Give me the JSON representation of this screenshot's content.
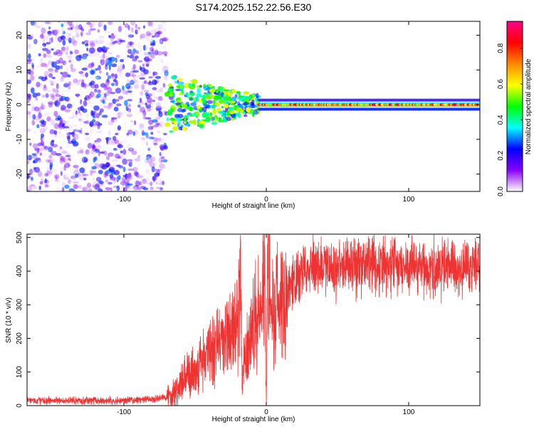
{
  "title": "S174.2025.152.22.56.E30",
  "chart_data": [
    {
      "type": "heatmap",
      "xlabel": "Height of straight line (km)",
      "ylabel": "Frequency (Hz)",
      "xlim": [
        -168,
        150
      ],
      "ylim": [
        -25,
        24
      ],
      "x_ticks": [
        -100,
        0,
        100
      ],
      "y_ticks": [
        -20,
        -10,
        0,
        10,
        20
      ],
      "colorbar": {
        "label": "Normalized spectral amplitude",
        "range": [
          0.0,
          0.95
        ],
        "ticks": [
          0.0,
          0.2,
          0.4,
          0.6,
          0.8
        ],
        "colors": [
          "#ffffff",
          "#8800ff",
          "#0000ff",
          "#00ffff",
          "#00ff00",
          "#ffff00",
          "#ff8800",
          "#ff0000",
          "#ff0088"
        ]
      },
      "regions": [
        {
          "feature": "noise",
          "x_range": [
            -168,
            -70
          ],
          "y_range": [
            -25,
            24
          ],
          "amplitude": [
            0.0,
            0.3
          ]
        },
        {
          "feature": "scattered onset",
          "x_range": [
            -70,
            -5
          ],
          "y_range": [
            -9,
            8
          ],
          "amplitude": [
            0.2,
            0.6
          ]
        },
        {
          "feature": "tonal line",
          "x_range": [
            -5,
            150
          ],
          "y_center": 0,
          "amplitude": [
            0.5,
            0.9
          ]
        }
      ]
    },
    {
      "type": "line",
      "xlabel": "Height of straight line (km)",
      "ylabel": "SNR (10 * v/v)",
      "xlim": [
        -168,
        150
      ],
      "ylim": [
        0,
        510
      ],
      "x_ticks": [
        -100,
        0,
        100
      ],
      "y_ticks": [
        0,
        100,
        200,
        300,
        400,
        500
      ],
      "color": "#ee3333",
      "series": [
        {
          "x": [
            -168,
            -140,
            -110,
            -80,
            -70,
            -60,
            -50,
            -40,
            -30,
            -20,
            -18,
            -17,
            -10,
            -5,
            -1,
            0,
            1,
            5,
            10,
            15,
            20,
            25,
            30,
            40,
            60,
            80,
            100,
            120,
            150
          ],
          "y": [
            15,
            15,
            15,
            18,
            25,
            60,
            110,
            160,
            200,
            230,
            480,
            80,
            240,
            270,
            420,
            0,
            430,
            280,
            320,
            340,
            370,
            390,
            410,
            415,
            420,
            420,
            420,
            410,
            410
          ]
        }
      ]
    }
  ]
}
